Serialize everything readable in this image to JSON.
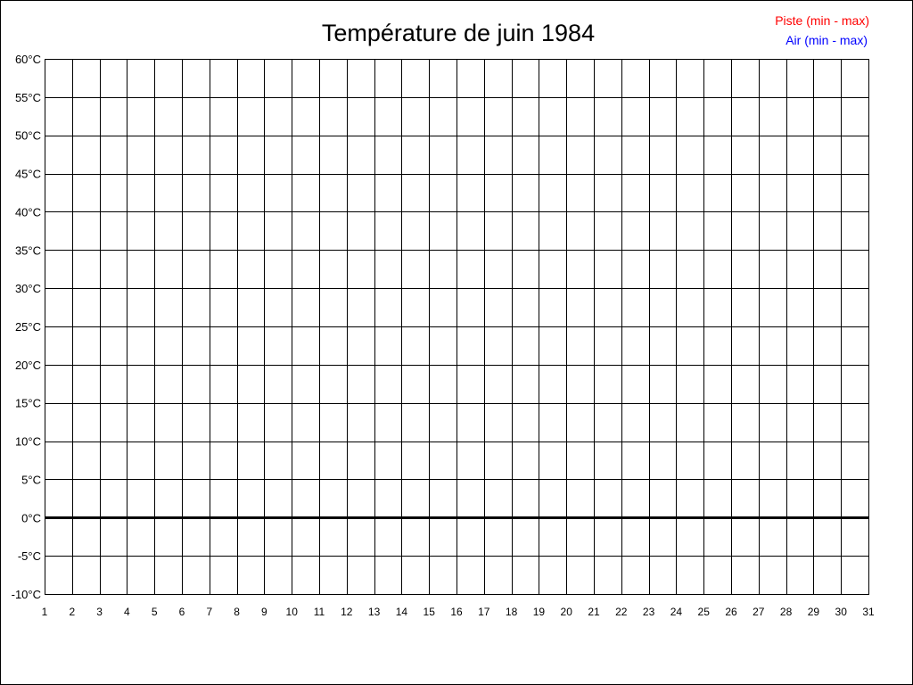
{
  "chart_data": {
    "type": "line",
    "title": "Température de juin 1984",
    "xlabel": "",
    "ylabel": "",
    "x_ticks": [
      1,
      2,
      3,
      4,
      5,
      6,
      7,
      8,
      9,
      10,
      11,
      12,
      13,
      14,
      15,
      16,
      17,
      18,
      19,
      20,
      21,
      22,
      23,
      24,
      25,
      26,
      27,
      28,
      29,
      30,
      31
    ],
    "y_ticks": [
      60,
      55,
      50,
      45,
      40,
      35,
      30,
      25,
      20,
      15,
      10,
      5,
      0,
      -5,
      -10
    ],
    "y_unit": "°C",
    "xlim": [
      1,
      31
    ],
    "ylim": [
      -10,
      60
    ],
    "grid": true,
    "legend_position": "top-right",
    "series": [
      {
        "name": "Piste (min - max)",
        "color": "#ff0000",
        "values": []
      },
      {
        "name": "Air (min - max)",
        "color": "#0000ff",
        "values": []
      }
    ],
    "zero_line": true
  }
}
